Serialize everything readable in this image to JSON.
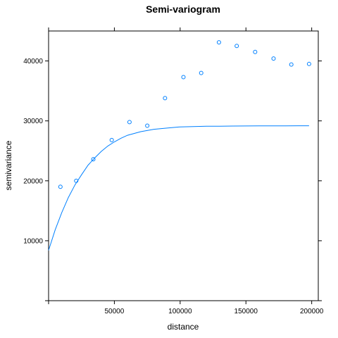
{
  "chart_data": {
    "type": "scatter",
    "title": "Semi-variogram",
    "xlabel": "distance",
    "ylabel": "semivariance",
    "xlim": [
      0,
      205000
    ],
    "ylim": [
      0,
      45000
    ],
    "x_ticks": [
      {
        "value": 50000,
        "label": "50000"
      },
      {
        "value": 100000,
        "label": "100000"
      },
      {
        "value": 150000,
        "label": "150000"
      },
      {
        "value": 200000,
        "label": "200000"
      }
    ],
    "y_ticks": [
      {
        "value": 10000,
        "label": "10000"
      },
      {
        "value": 20000,
        "label": "20000"
      },
      {
        "value": 30000,
        "label": "30000"
      },
      {
        "value": 40000,
        "label": "40000"
      }
    ],
    "grid": false,
    "series": [
      {
        "kind": "points",
        "marker": "open-circle",
        "color": "#0080ff",
        "x": [
          9000,
          21000,
          34000,
          48000,
          61500,
          75000,
          88500,
          102500,
          116000,
          129500,
          143000,
          157000,
          171000,
          184500,
          198000
        ],
        "y": [
          19000,
          20000,
          23600,
          26800,
          29800,
          29200,
          33800,
          37300,
          38000,
          43100,
          42500,
          41500,
          40400,
          39400,
          39500
        ]
      },
      {
        "kind": "line",
        "model": "exponential",
        "color": "#0080ff",
        "x": [
          0,
          5000,
          10000,
          15000,
          20000,
          25000,
          30000,
          35000,
          40000,
          45000,
          50000,
          55000,
          60000,
          70000,
          80000,
          90000,
          100000,
          110000,
          120000,
          130000,
          140000,
          150000,
          160000,
          170000,
          180000,
          190000,
          198000
        ],
        "y": [
          8400,
          11800,
          14700,
          17200,
          19300,
          21000,
          22600,
          23800,
          24900,
          25800,
          26500,
          27100,
          27600,
          28200,
          28600,
          28800,
          29000,
          29050,
          29100,
          29120,
          29140,
          29150,
          29160,
          29170,
          29170,
          29180,
          29180
        ]
      }
    ]
  }
}
